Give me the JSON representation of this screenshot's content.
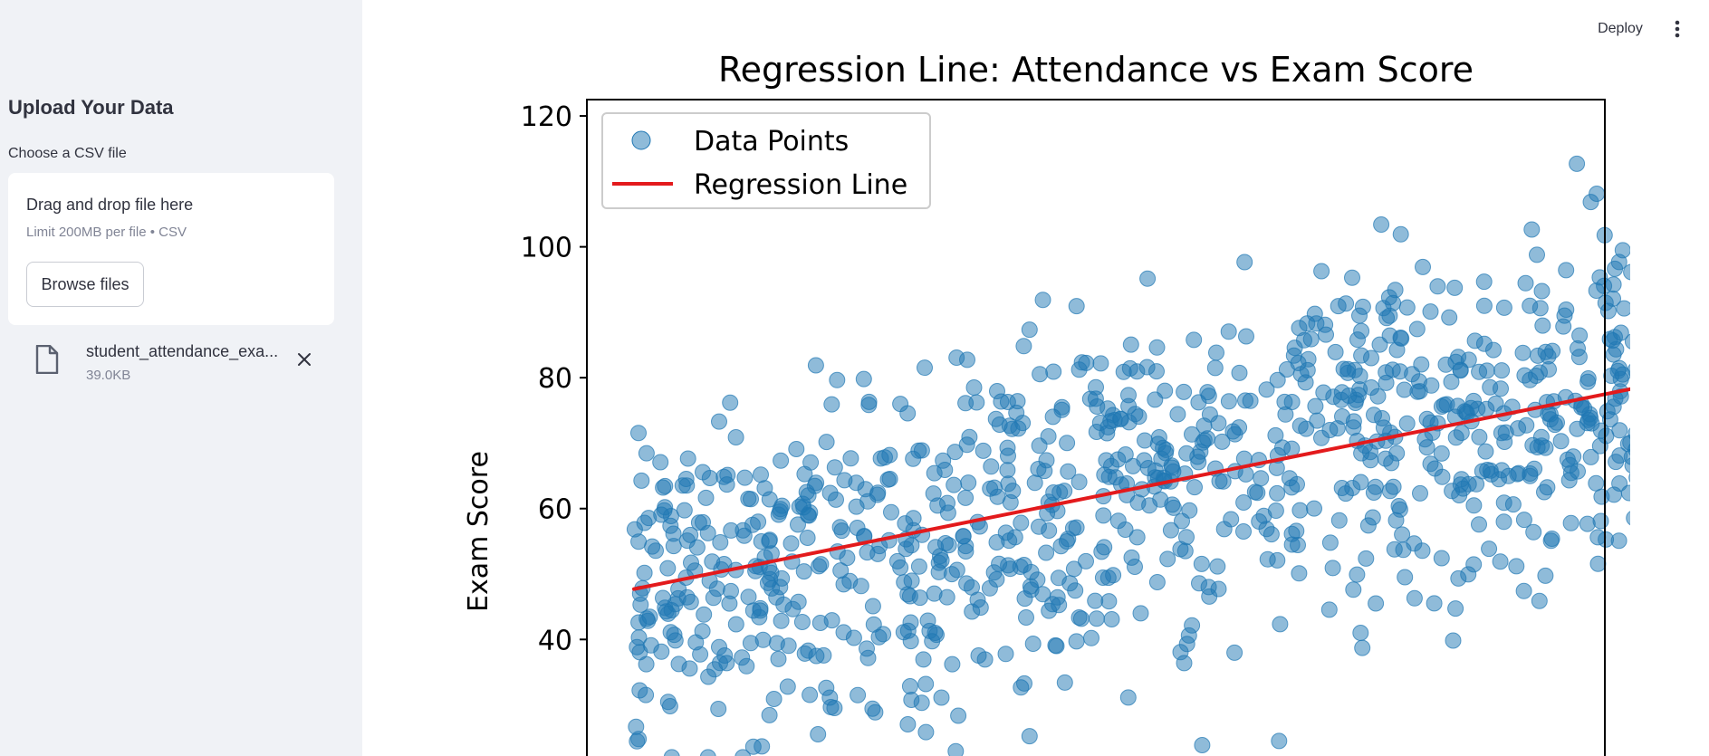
{
  "sidebar": {
    "heading": "Upload Your Data",
    "uploader_label": "Choose a CSV file",
    "dropzone_title": "Drag and drop file here",
    "dropzone_limit": "Limit 200MB per file • CSV",
    "browse_label": "Browse files",
    "file": {
      "name": "student_attendance_exa...",
      "size": "39.0KB",
      "icon": "file-icon",
      "remove_icon": "close-icon"
    }
  },
  "header": {
    "deploy_label": "Deploy",
    "menu_icon": "more-vertical-icon"
  },
  "colors": {
    "sidebar_bg": "#f0f2f6",
    "points": "#1f77b4",
    "regression_line": "#e31a1c"
  },
  "chart_data": {
    "type": "scatter",
    "title": "Regression Line: Attendance vs Exam Score",
    "xlabel": "",
    "ylabel": "Exam Score",
    "ylim": [
      21.5,
      122.5
    ],
    "y_ticks": [
      "40",
      "60",
      "80",
      "100",
      "120"
    ],
    "grid": false,
    "legend": {
      "placement": "top-left",
      "entries": [
        "Data Points",
        "Regression Line"
      ]
    },
    "series": [
      {
        "name": "Data Points",
        "kind": "scatter",
        "point_count_approx": 1000,
        "y_range_visible": [
          22,
          117
        ],
        "color": "#1f77b4",
        "alpha": 0.5
      },
      {
        "name": "Regression Line",
        "kind": "line",
        "y_start": 47.7,
        "y_end": 80.2,
        "color": "#e31a1c"
      }
    ]
  }
}
